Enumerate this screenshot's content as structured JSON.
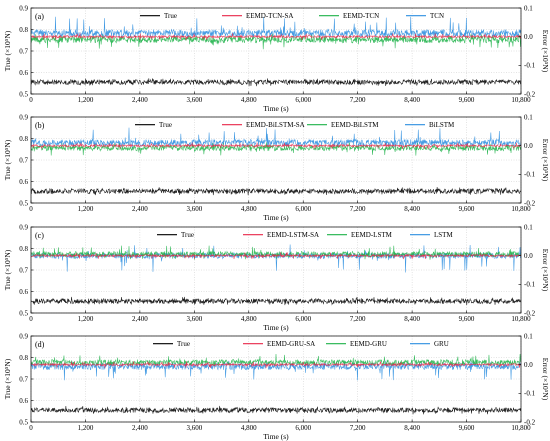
{
  "chart_data": [
    {
      "type": "line",
      "panel_label": "(a)",
      "xlabel": "Time (s)",
      "ylabel_left": "True (×10⁵N)",
      "ylabel_right": "Error (×10⁵N)",
      "xlim": [
        0,
        10800
      ],
      "ylim_left": [
        0.5,
        0.9
      ],
      "ylim_right": [
        -0.2,
        0.1
      ],
      "x_ticks": [
        "0",
        "1,200",
        "2,400",
        "3,600",
        "4,800",
        "6,000",
        "7,200",
        "8,400",
        "9,600",
        "10,800"
      ],
      "y_ticks_left": [
        "0.5",
        "0.6",
        "0.7",
        "0.8",
        "0.9"
      ],
      "y_ticks_right": [
        "-0.2",
        "-0.1",
        "0.0",
        "0.1"
      ],
      "legend_position": "top",
      "series": [
        {
          "name": "True",
          "color": "#000000",
          "axis": "left",
          "center": 0.555,
          "spread": 0.012,
          "spike_up": 0.02,
          "spike_down": 0.02
        },
        {
          "name": "EEMD-TCN-SA",
          "color": "#e8284a",
          "axis": "right",
          "center": 0.0,
          "spread": 0.004,
          "spike_up": 0.012,
          "spike_down": 0.012
        },
        {
          "name": "EEMD-TCN",
          "color": "#1fb34a",
          "axis": "right",
          "center": -0.01,
          "spread": 0.012,
          "spike_up": 0.02,
          "spike_down": 0.035
        },
        {
          "name": "TCN",
          "color": "#2e8fe0",
          "axis": "right",
          "center": 0.012,
          "spread": 0.013,
          "spike_up": 0.06,
          "spike_down": 0.02
        }
      ]
    },
    {
      "type": "line",
      "panel_label": "(b)",
      "xlabel": "Time (s)",
      "ylabel_left": "True (×10⁵N)",
      "ylabel_right": "Error (×10⁵N)",
      "xlim": [
        0,
        10800
      ],
      "ylim_left": [
        0.5,
        0.9
      ],
      "ylim_right": [
        -0.2,
        0.1
      ],
      "x_ticks": [
        "0",
        "1,200",
        "2,400",
        "3,600",
        "4,800",
        "6,000",
        "7,200",
        "8,400",
        "9,600",
        "10,800"
      ],
      "y_ticks_left": [
        "0.5",
        "0.6",
        "0.7",
        "0.8",
        "0.9"
      ],
      "y_ticks_right": [
        "-0.2",
        "-0.1",
        "0.0",
        "0.1"
      ],
      "legend_position": "top",
      "series": [
        {
          "name": "True",
          "color": "#000000",
          "axis": "left",
          "center": 0.555,
          "spread": 0.012,
          "spike_up": 0.02,
          "spike_down": 0.02
        },
        {
          "name": "EEMD-BiLSTM-SA",
          "color": "#e8284a",
          "axis": "right",
          "center": 0.0,
          "spread": 0.004,
          "spike_up": 0.012,
          "spike_down": 0.012
        },
        {
          "name": "EEMD-BiLSTM",
          "color": "#1fb34a",
          "axis": "right",
          "center": -0.008,
          "spread": 0.01,
          "spike_up": 0.02,
          "spike_down": 0.03
        },
        {
          "name": "BiLSTM",
          "color": "#2e8fe0",
          "axis": "right",
          "center": 0.01,
          "spread": 0.012,
          "spike_up": 0.055,
          "spike_down": 0.02
        }
      ]
    },
    {
      "type": "line",
      "panel_label": "(c)",
      "xlabel": "Time (s)",
      "ylabel_left": "True (×10⁵N)",
      "ylabel_right": "Error (×10⁵N)",
      "xlim": [
        0,
        10800
      ],
      "ylim_left": [
        0.5,
        0.9
      ],
      "ylim_right": [
        -0.2,
        0.1
      ],
      "x_ticks": [
        "0",
        "1,200",
        "2,400",
        "3,600",
        "4,800",
        "6,000",
        "7,200",
        "8,400",
        "9,600",
        "10,800"
      ],
      "y_ticks_left": [
        "0.5",
        "0.6",
        "0.7",
        "0.8",
        "0.9"
      ],
      "y_ticks_right": [
        "-0.2",
        "-0.1",
        "0.0",
        "0.1"
      ],
      "legend_position": "top",
      "series": [
        {
          "name": "True",
          "color": "#000000",
          "axis": "left",
          "center": 0.555,
          "spread": 0.012,
          "spike_up": 0.02,
          "spike_down": 0.02
        },
        {
          "name": "EEMD-LSTM-SA",
          "color": "#e8284a",
          "axis": "right",
          "center": 0.0,
          "spread": 0.004,
          "spike_up": 0.012,
          "spike_down": 0.012
        },
        {
          "name": "EEMD-LSTM",
          "color": "#1fb34a",
          "axis": "right",
          "center": 0.005,
          "spread": 0.01,
          "spike_up": 0.03,
          "spike_down": 0.02
        },
        {
          "name": "LSTM",
          "color": "#2e8fe0",
          "axis": "right",
          "center": 0.0,
          "spread": 0.01,
          "spike_up": 0.04,
          "spike_down": 0.06
        }
      ]
    },
    {
      "type": "line",
      "panel_label": "(d)",
      "xlabel": "Time (s)",
      "ylabel_left": "True (×10⁵N)",
      "ylabel_right": "Error (×10⁵N)",
      "xlim": [
        0,
        10800
      ],
      "ylim_left": [
        0.5,
        0.9
      ],
      "ylim_right": [
        -0.2,
        0.1
      ],
      "x_ticks": [
        "0",
        "1,200",
        "2,400",
        "3,600",
        "4,800",
        "6,000",
        "7,200",
        "8,400",
        "9,600",
        "10,800"
      ],
      "y_ticks_left": [
        "0.5",
        "0.6",
        "0.7",
        "0.8",
        "0.9"
      ],
      "y_ticks_right": [
        "-0.2",
        "-0.1",
        "0.0",
        "0.1"
      ],
      "legend_position": "top",
      "series": [
        {
          "name": "True",
          "color": "#000000",
          "axis": "left",
          "center": 0.555,
          "spread": 0.012,
          "spike_up": 0.02,
          "spike_down": 0.02
        },
        {
          "name": "EEMD-GRU-SA",
          "color": "#e8284a",
          "axis": "right",
          "center": 0.0,
          "spread": 0.004,
          "spike_up": 0.012,
          "spike_down": 0.012
        },
        {
          "name": "EEMD-GRU",
          "color": "#1fb34a",
          "axis": "right",
          "center": 0.008,
          "spread": 0.01,
          "spike_up": 0.03,
          "spike_down": 0.015
        },
        {
          "name": "GRU",
          "color": "#2e8fe0",
          "axis": "right",
          "center": -0.006,
          "spread": 0.012,
          "spike_up": 0.02,
          "spike_down": 0.05
        }
      ]
    }
  ]
}
